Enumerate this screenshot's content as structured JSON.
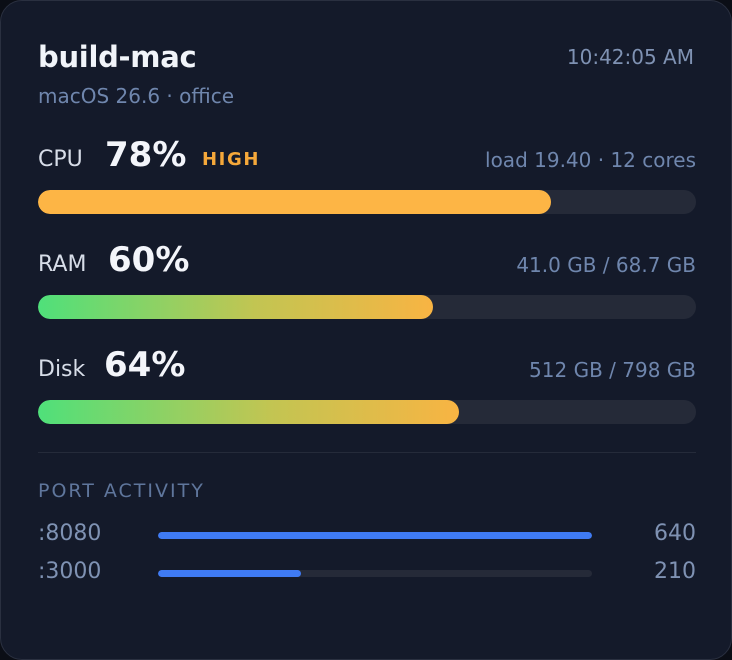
{
  "header": {
    "hostname": "build-mac",
    "time": "10:42:05 AM",
    "subtitle": "macOS 26.6 · office"
  },
  "metrics": [
    {
      "label": "CPU",
      "value": "78%",
      "flag": "HIGH",
      "detail": "load 19.40 · 12 cores",
      "fraction": 0.78
    },
    {
      "label": "RAM",
      "value": "60%",
      "detail": "41.0 GB / 68.7 GB",
      "fraction": 0.6
    },
    {
      "label": "Disk",
      "value": "64%",
      "detail": "512 GB / 798 GB",
      "fraction": 0.64
    }
  ],
  "ports": {
    "title": "PORT ACTIVITY",
    "items": [
      {
        "label": ":8080",
        "value": "640",
        "fraction": 1.0
      },
      {
        "label": ":3000",
        "value": "210",
        "fraction": 0.33
      }
    ]
  },
  "colors": {
    "card_background": "#141a2a",
    "cpu_bar": "#fdb545",
    "high_flag": "#f5a83a",
    "gradient_start": "#4fe07a",
    "gradient_end": "#f8b443",
    "port_bar": "#3f7bf4",
    "track": "#252a38"
  }
}
